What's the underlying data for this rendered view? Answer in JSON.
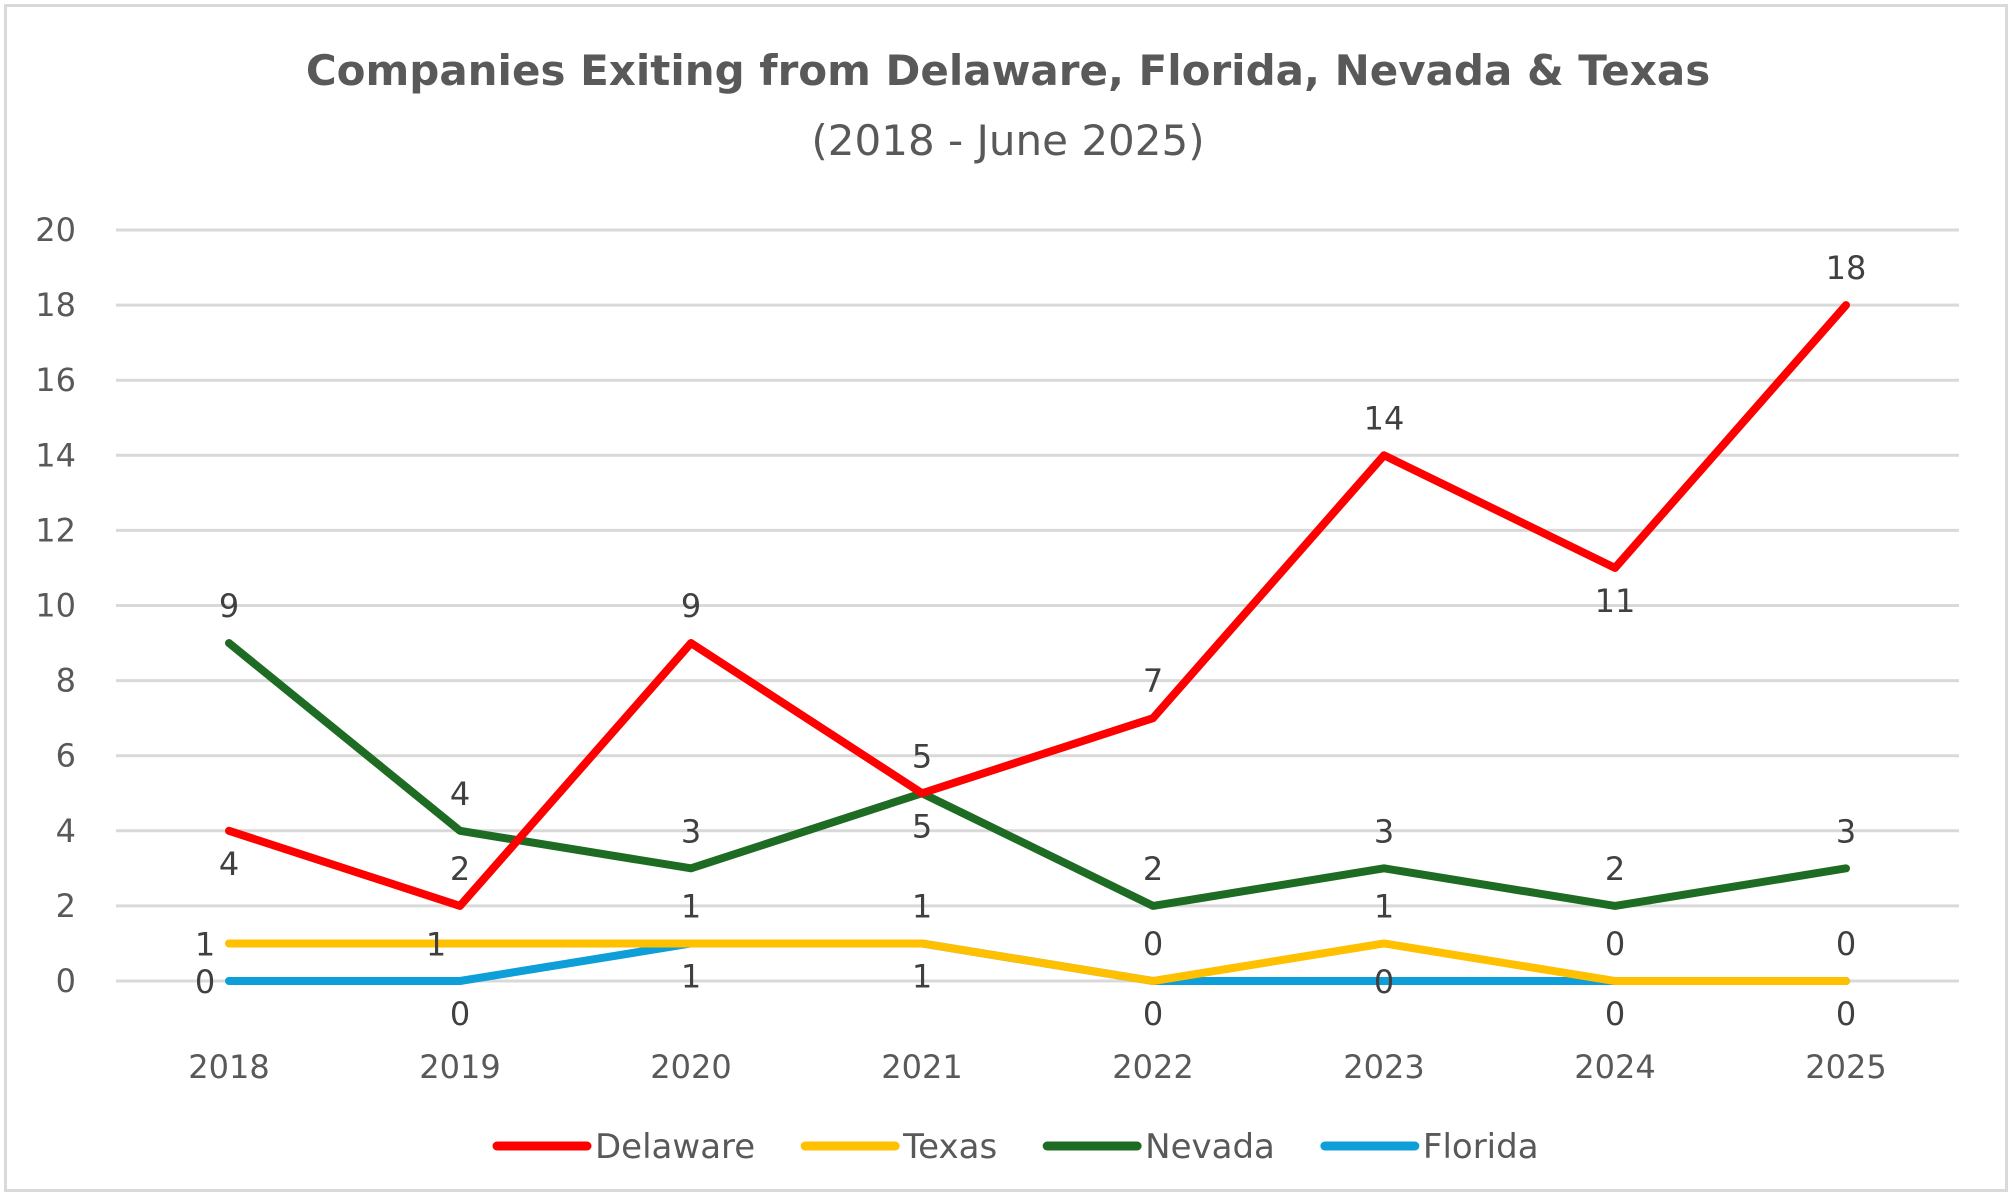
{
  "chart_data": {
    "type": "line",
    "title": "Companies Exiting from Delaware, Florida, Nevada & Texas",
    "subtitle": "(2018 - June 2025)",
    "categories": [
      "2018",
      "2019",
      "2020",
      "2021",
      "2022",
      "2023",
      "2024",
      "2025"
    ],
    "ylim": [
      0,
      20
    ],
    "yticks": [
      0,
      2,
      4,
      6,
      8,
      10,
      12,
      14,
      16,
      18,
      20
    ],
    "grid": true,
    "legend_position": "bottom",
    "data_labels": true,
    "series": [
      {
        "name": "Delaware",
        "color": "#ff0000",
        "values": [
          4,
          2,
          9,
          5,
          7,
          14,
          11,
          18
        ]
      },
      {
        "name": "Texas",
        "color": "#ffc000",
        "values": [
          1,
          1,
          1,
          1,
          0,
          1,
          0,
          0
        ]
      },
      {
        "name": "Nevada",
        "color": "#1e6b23",
        "values": [
          9,
          4,
          3,
          5,
          2,
          3,
          2,
          3
        ]
      },
      {
        "name": "Florida",
        "color": "#0e9fd8",
        "values": [
          0,
          0,
          1,
          1,
          0,
          0,
          0,
          0
        ]
      }
    ]
  }
}
